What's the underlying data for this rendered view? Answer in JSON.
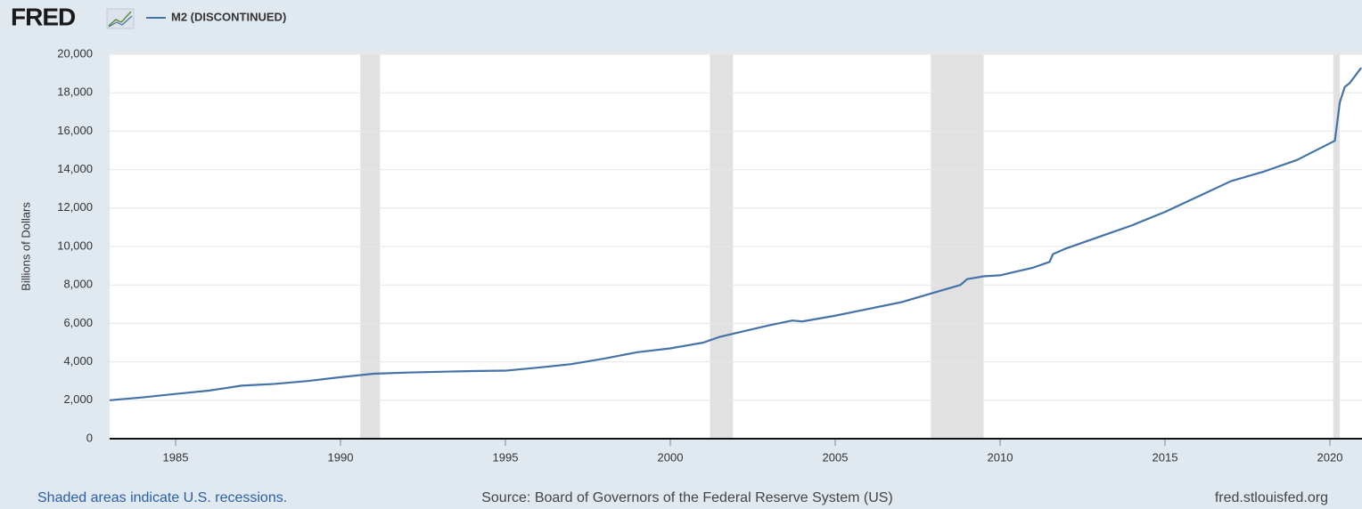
{
  "header": {
    "logo": "FRED"
  },
  "chart_data": {
    "type": "line",
    "y_label": "Billions of Dollars",
    "x": [
      1983,
      1984,
      1985,
      1986,
      1987,
      1988,
      1989,
      1990,
      1991,
      1992,
      1993,
      1994,
      1995,
      1996,
      1997,
      1998,
      1999,
      2000,
      2001,
      2001.5,
      2002,
      2003,
      2003.7,
      2004,
      2005,
      2006,
      2007,
      2008,
      2008.8,
      2009,
      2009.5,
      2010,
      2011,
      2011.5,
      2011.6,
      2012,
      2013,
      2014,
      2015,
      2016,
      2017,
      2018,
      2019,
      2020.15,
      2020.3,
      2020.45,
      2020.6,
      2020.95
    ],
    "series": [
      {
        "name": "M2 (DISCONTINUED)",
        "color": "#4572a7",
        "values": [
          2000,
          2150,
          2330,
          2500,
          2760,
          2850,
          3000,
          3200,
          3380,
          3440,
          3480,
          3520,
          3540,
          3700,
          3880,
          4170,
          4500,
          4700,
          5000,
          5300,
          5500,
          5900,
          6150,
          6100,
          6400,
          6750,
          7100,
          7600,
          8000,
          8300,
          8450,
          8500,
          8900,
          9200,
          9600,
          9900,
          10500,
          11100,
          11800,
          12600,
          13400,
          13900,
          14500,
          15500,
          17500,
          18300,
          18500,
          19300
        ]
      }
    ],
    "recessions": [
      [
        1990.6,
        1991.2
      ],
      [
        2001.2,
        2001.9
      ],
      [
        2007.9,
        2009.5
      ],
      [
        2020.1,
        2020.3
      ]
    ],
    "recession_color": "#e1e1e1",
    "xlim": [
      1983,
      2021
    ],
    "xticks": [
      1985,
      1990,
      1995,
      2000,
      2005,
      2010,
      2015,
      2020
    ],
    "ylim": [
      0,
      20000
    ],
    "yticks": [
      0,
      {
        "value": 2000,
        "label": "2,000"
      },
      {
        "value": 4000,
        "label": "4,000"
      },
      {
        "value": 6000,
        "label": "6,000"
      },
      {
        "value": 8000,
        "label": "8,000"
      },
      {
        "value": 10000,
        "label": "10,000"
      },
      {
        "value": 12000,
        "label": "12,000"
      },
      {
        "value": 14000,
        "label": "14,000"
      },
      {
        "value": 16000,
        "label": "16,000"
      },
      {
        "value": 18000,
        "label": "18,000"
      },
      {
        "value": 20000,
        "label": "20,000"
      }
    ],
    "grid": true
  },
  "footer": {
    "note": "Shaded areas indicate U.S. recessions.",
    "source": "Source: Board of Governors of the Federal Reserve System (US)",
    "site": "fred.stlouisfed.org"
  }
}
